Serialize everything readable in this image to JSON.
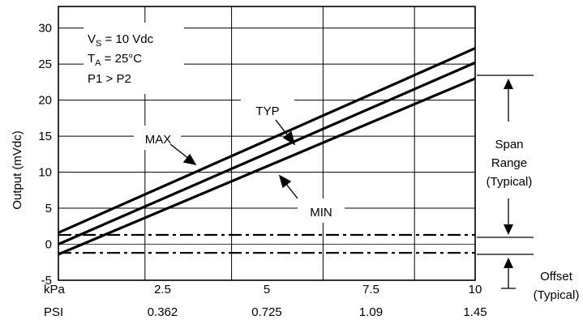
{
  "chart_data": {
    "type": "line",
    "ylabel": "Output (mVdc)",
    "xlim": [
      0,
      10
    ],
    "ylim": [
      -5,
      33
    ],
    "grid": true,
    "x_unit_label": "kPa",
    "x_ticks": [
      {
        "x": 2.5,
        "label": "2.5",
        "psi": "0.362"
      },
      {
        "x": 5,
        "label": "5",
        "psi": "0.725"
      },
      {
        "x": 7.5,
        "label": "7.5",
        "psi": "1.09"
      },
      {
        "x": 10,
        "label": "10",
        "psi": "1.45"
      }
    ],
    "x_secondary_label": "PSI",
    "y_ticks": [
      "-5",
      "0",
      "5",
      "10",
      "15",
      "20",
      "25",
      "30"
    ],
    "y_tick_values": [
      -5,
      0,
      5,
      10,
      15,
      20,
      25,
      30
    ],
    "conditions": {
      "vs_prefix": "V",
      "vs_sub": "S",
      "vs_rest": " = 10 Vdc",
      "ta_prefix": "T",
      "ta_sub": "A",
      "ta_rest": " = 25°C",
      "pressure": "P1 > P2"
    },
    "series": [
      {
        "name": "MAX",
        "x": [
          0,
          10
        ],
        "y": [
          1.6,
          27.2
        ]
      },
      {
        "name": "TYP",
        "x": [
          0,
          10
        ],
        "y": [
          0.0,
          25.2
        ]
      },
      {
        "name": "MIN",
        "x": [
          0,
          10
        ],
        "y": [
          -1.4,
          23.0
        ]
      }
    ],
    "offset_limits": [
      1.3,
      -1.2
    ],
    "annotations": {
      "span": [
        "Span",
        "Range",
        "(Typical)"
      ],
      "offset": [
        "Offset",
        "(Typical)"
      ]
    }
  }
}
